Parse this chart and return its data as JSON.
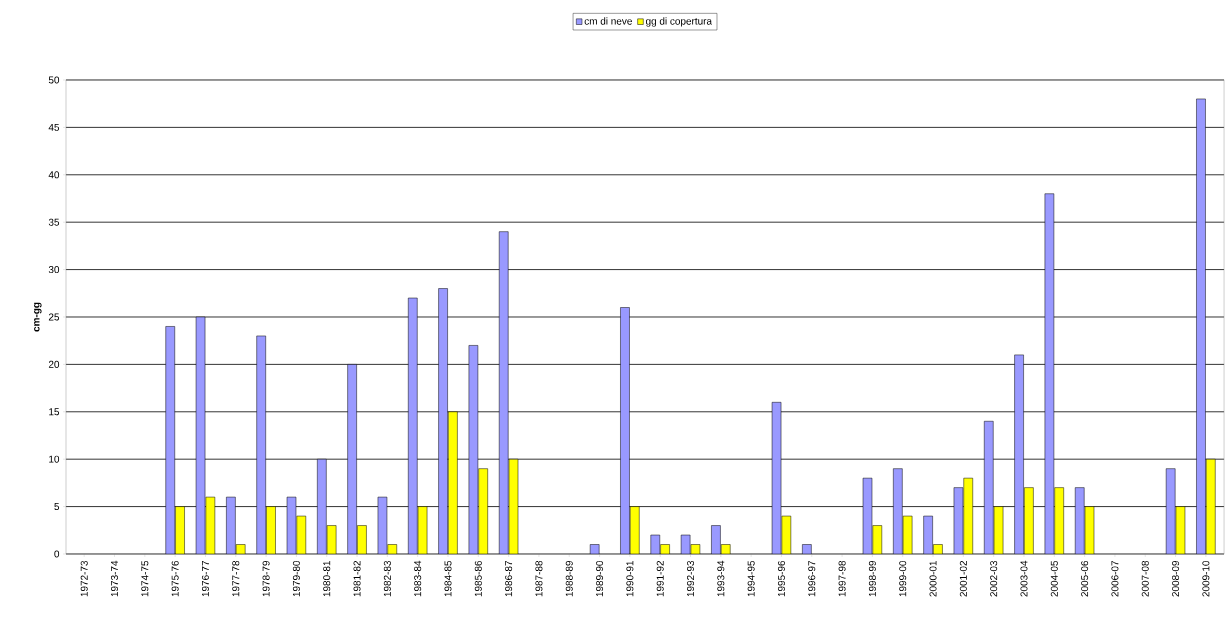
{
  "chart_data": {
    "type": "bar",
    "ylabel": "cm-gg",
    "categories": [
      "1972-73",
      "1973-74",
      "1974-75",
      "1975-76",
      "1976-77",
      "1977-78",
      "1978-79",
      "1979-80",
      "1980-81",
      "1981-82",
      "1982-83",
      "1983-84",
      "1984-85",
      "1985-86",
      "1986-87",
      "1987-88",
      "1988-89",
      "1989-90",
      "1990-91",
      "1991-92",
      "1992-93",
      "1993-94",
      "1994-95",
      "1995-96",
      "1996-97",
      "1997-98",
      "1998-99",
      "1999-00",
      "2000-01",
      "2001-02",
      "2002-03",
      "2003-04",
      "2004-05",
      "2005-06",
      "2006-07",
      "2007-08",
      "2008-09",
      "2009-10"
    ],
    "series": [
      {
        "name": "cm di neve",
        "color": "#9999ff",
        "values": [
          0,
          0,
          0,
          24,
          25,
          6,
          23,
          6,
          10,
          20,
          6,
          27,
          28,
          22,
          34,
          0,
          0,
          1,
          26,
          2,
          2,
          3,
          0,
          16,
          1,
          0,
          8,
          9,
          4,
          7,
          14,
          21,
          38,
          7,
          0,
          0,
          9,
          48
        ]
      },
      {
        "name": "gg di copertura",
        "color": "#ffff00",
        "values": [
          0,
          0,
          0,
          5,
          6,
          1,
          5,
          4,
          3,
          3,
          1,
          5,
          15,
          9,
          10,
          0,
          0,
          0,
          5,
          1,
          1,
          1,
          0,
          4,
          0,
          0,
          3,
          4,
          1,
          8,
          5,
          7,
          7,
          5,
          0,
          0,
          5,
          10
        ]
      }
    ],
    "ylim": [
      0,
      50
    ],
    "yticks": [
      0,
      5,
      10,
      15,
      20,
      25,
      30,
      35,
      40,
      45,
      50
    ],
    "grid": "y",
    "legend": "top"
  }
}
